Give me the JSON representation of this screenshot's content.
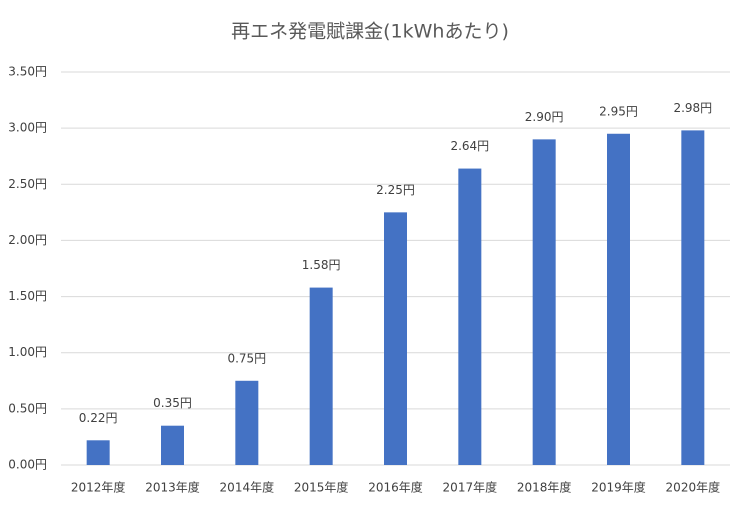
{
  "chart_data": {
    "type": "bar",
    "title": "再エネ発電賦課金(1kWhあたり)",
    "categories": [
      "2012年度",
      "2013年度",
      "2014年度",
      "2015年度",
      "2016年度",
      "2017年度",
      "2018年度",
      "2019年度",
      "2020年度"
    ],
    "values": [
      0.22,
      0.35,
      0.75,
      1.58,
      2.25,
      2.64,
      2.9,
      2.95,
      2.98
    ],
    "value_labels": [
      "0.22円",
      "0.35円",
      "0.75円",
      "1.58円",
      "2.25円",
      "2.64円",
      "2.90円",
      "2.95円",
      "2.98円"
    ],
    "color": "#4472c4",
    "ylim": [
      0,
      3.5
    ],
    "yticks": [
      {
        "value": 0,
        "label": "0.00円"
      },
      {
        "value": 0.5,
        "label": "0.50円"
      },
      {
        "value": 1,
        "label": "1.00円"
      },
      {
        "value": 1.5,
        "label": "1.50円"
      },
      {
        "value": 2,
        "label": "2.00円"
      },
      {
        "value": 2.5,
        "label": "2.50円"
      },
      {
        "value": 3,
        "label": "3.00円"
      },
      {
        "value": 3.5,
        "label": "3.50円"
      }
    ],
    "grid": true
  }
}
